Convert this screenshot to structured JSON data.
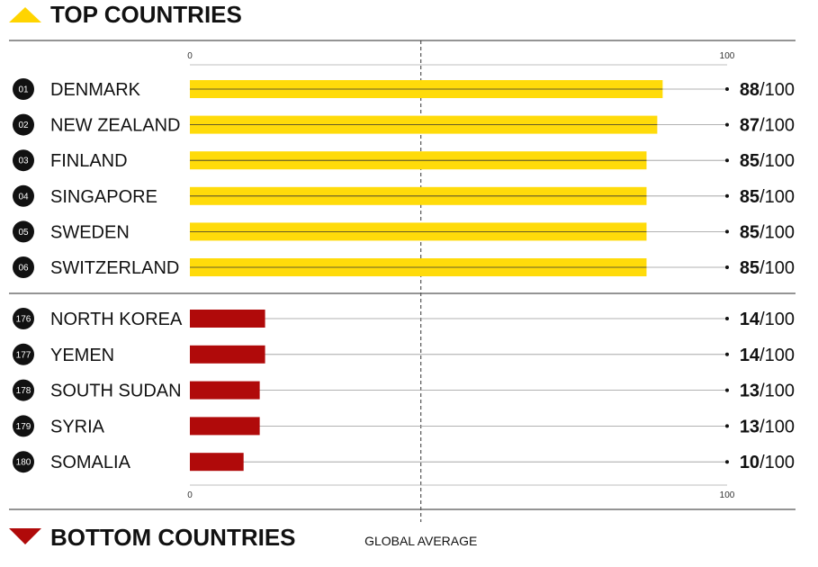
{
  "top_heading": "TOP COUNTRIES",
  "bottom_heading": "BOTTOM COUNTRIES",
  "avg_label": "GLOBAL AVERAGE",
  "colors": {
    "top_bar": "#FFDB0A",
    "bottom_bar": "#B00A0A",
    "top_icon": "#FFD400",
    "bottom_icon": "#B00A0A",
    "rank_badge": "#111111"
  },
  "icons": {
    "top": "triangle-up-icon",
    "bottom": "triangle-down-icon"
  },
  "chart_data": {
    "type": "bar",
    "orientation": "horizontal",
    "xlim": [
      0,
      100
    ],
    "tick_labels": [
      "0",
      "100"
    ],
    "reference_line": {
      "label": "GLOBAL AVERAGE",
      "value": 43
    },
    "groups": [
      {
        "name": "TOP COUNTRIES",
        "rows": [
          {
            "rank": "01",
            "country": "DENMARK",
            "value": 88,
            "max": "100"
          },
          {
            "rank": "02",
            "country": "NEW ZEALAND",
            "value": 87,
            "max": "100"
          },
          {
            "rank": "03",
            "country": "FINLAND",
            "value": 85,
            "max": "100"
          },
          {
            "rank": "04",
            "country": "SINGAPORE",
            "value": 85,
            "max": "100"
          },
          {
            "rank": "05",
            "country": "SWEDEN",
            "value": 85,
            "max": "100"
          },
          {
            "rank": "06",
            "country": "SWITZERLAND",
            "value": 85,
            "max": "100"
          }
        ]
      },
      {
        "name": "BOTTOM COUNTRIES",
        "rows": [
          {
            "rank": "176",
            "country": "NORTH KOREA",
            "value": 14,
            "max": "100"
          },
          {
            "rank": "177",
            "country": "YEMEN",
            "value": 14,
            "max": "100"
          },
          {
            "rank": "178",
            "country": "SOUTH SUDAN",
            "value": 13,
            "max": "100"
          },
          {
            "rank": "179",
            "country": "SYRIA",
            "value": 13,
            "max": "100"
          },
          {
            "rank": "180",
            "country": "SOMALIA",
            "value": 10,
            "max": "100"
          }
        ]
      }
    ]
  }
}
